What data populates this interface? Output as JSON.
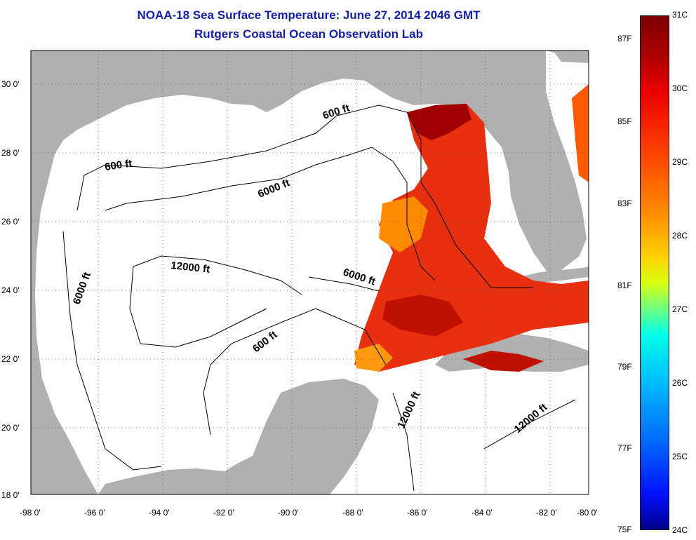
{
  "title": {
    "line1": "NOAA-18 Sea Surface Temperature:  June 27, 2014 2046 GMT",
    "line2": "Rutgers Coastal Ocean Observation Lab"
  },
  "axes": {
    "x_ticks": [
      "-98 0'",
      "-96 0'",
      "-94 0'",
      "-92 0'",
      "-90 0'",
      "-88 0'",
      "-86 0'",
      "-84 0'",
      "-82 0'",
      "-80 0'"
    ],
    "y_ticks": [
      "30 0'",
      "28 0'",
      "26 0'",
      "24 0'",
      "22 0'",
      "20 0'",
      "18 0'"
    ]
  },
  "contours": {
    "labels": [
      "600 ft",
      "600 ft",
      "6000 ft",
      "6000 ft",
      "6000 ft",
      "12000 ft",
      "600 ft",
      "12000 ft",
      "12000 ft"
    ]
  },
  "colorbar": {
    "celsius": [
      "31C",
      "30C",
      "29C",
      "28C",
      "27C",
      "26C",
      "25C",
      "24C"
    ],
    "fahrenheit": [
      "87F",
      "85F",
      "83F",
      "81F",
      "79F",
      "77F",
      "75F"
    ]
  },
  "colors": {
    "land": "#b0b0b0",
    "title": "#1520a6",
    "sst_hot": "#a00000",
    "sst_warm": "#e83010",
    "sst_mid": "#ff8a00"
  }
}
